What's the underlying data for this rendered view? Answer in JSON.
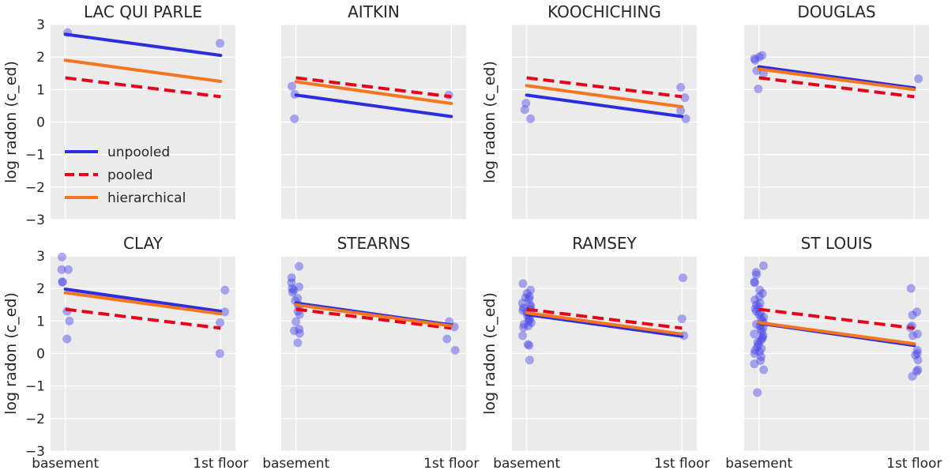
{
  "colors": {
    "background": "#ebebeb",
    "grid": "#ffffff",
    "unpooled": "#2d2de0",
    "pooled": "#e8001a",
    "hierarchical": "#f5761f",
    "points": "#4a46e6"
  },
  "chart_data": {
    "type": "scatter",
    "layout": {
      "rows": 2,
      "cols": 4,
      "sharey": true
    },
    "ylabel": "log radon  (c_ed)",
    "ylim": [
      -3,
      3
    ],
    "yticks": [
      -3,
      -2,
      -1,
      0,
      1,
      2,
      3
    ],
    "ytick_labels": [
      "−3",
      "−2",
      "−1",
      "0",
      "1",
      "2",
      "3"
    ],
    "x_categories": [
      "basement",
      "1st floor"
    ],
    "grid": true,
    "legend": {
      "placement": "lower-left of first panel",
      "entries": [
        {
          "key": "unpooled",
          "label": "unpooled",
          "style": "solid"
        },
        {
          "key": "pooled",
          "label": "pooled",
          "style": "dashed"
        },
        {
          "key": "hierarchical",
          "label": "hierarchical",
          "style": "solid"
        }
      ]
    },
    "panels": [
      {
        "title": "LAC QUI PARLE",
        "unpooled": [
          2.7,
          2.05
        ],
        "pooled": [
          1.36,
          0.78
        ],
        "hierarchical": [
          1.9,
          1.25
        ],
        "basement_points": [
          2.75
        ],
        "floor_points": [
          2.42
        ]
      },
      {
        "title": "AITKIN",
        "unpooled": [
          0.83,
          0.17
        ],
        "pooled": [
          1.36,
          0.78
        ],
        "hierarchical": [
          1.24,
          0.57
        ],
        "basement_points": [
          1.1,
          0.85,
          0.1
        ],
        "floor_points": [
          0.83
        ]
      },
      {
        "title": "KOOCHICHING",
        "unpooled": [
          0.83,
          0.17
        ],
        "pooled": [
          1.36,
          0.78
        ],
        "hierarchical": [
          1.12,
          0.47
        ],
        "basement_points": [
          0.58,
          0.38,
          0.1
        ],
        "floor_points": [
          1.07,
          0.75,
          0.35,
          0.1
        ]
      },
      {
        "title": "DOUGLAS",
        "unpooled": [
          1.7,
          1.05
        ],
        "pooled": [
          1.36,
          0.78
        ],
        "hierarchical": [
          1.63,
          1.0
        ],
        "basement_points": [
          2.05,
          2.0,
          1.95,
          1.9,
          1.58,
          1.5,
          1.02
        ],
        "floor_points": [
          1.33
        ]
      },
      {
        "title": "CLAY",
        "unpooled": [
          1.98,
          1.3
        ],
        "pooled": [
          1.36,
          0.78
        ],
        "hierarchical": [
          1.87,
          1.22
        ],
        "basement_points": [
          2.97,
          2.58,
          2.58,
          2.2,
          2.2,
          1.3,
          1.0,
          0.45
        ],
        "floor_points": [
          1.95,
          1.28,
          0.95,
          0.0
        ]
      },
      {
        "title": "STEARNS",
        "unpooled": [
          1.55,
          0.88
        ],
        "pooled": [
          1.36,
          0.78
        ],
        "hierarchical": [
          1.5,
          0.85
        ],
        "basement_points": [
          2.68,
          2.33,
          2.18,
          2.05,
          2.0,
          1.95,
          1.88,
          1.7,
          1.62,
          1.5,
          1.45,
          1.3,
          1.2,
          0.98,
          0.75,
          0.7,
          0.62,
          0.33
        ],
        "floor_points": [
          0.98,
          0.82,
          0.45,
          0.1
        ]
      },
      {
        "title": "RAMSEY",
        "unpooled": [
          1.2,
          0.53
        ],
        "pooled": [
          1.36,
          0.78
        ],
        "hierarchical": [
          1.25,
          0.6
        ],
        "basement_points": [
          2.15,
          1.95,
          1.85,
          1.75,
          1.72,
          1.68,
          1.55,
          1.5,
          1.45,
          1.4,
          1.35,
          1.32,
          1.28,
          1.22,
          1.18,
          1.1,
          1.05,
          1.0,
          0.95,
          0.9,
          0.85,
          0.8,
          0.55,
          0.28,
          0.25,
          -0.2
        ],
        "floor_points": [
          2.33,
          1.07,
          0.55
        ]
      },
      {
        "title": "ST LOUIS",
        "unpooled": [
          0.93,
          0.25
        ],
        "pooled": [
          1.36,
          0.78
        ],
        "hierarchical": [
          0.95,
          0.3
        ],
        "basement_points": [
          2.7,
          2.5,
          2.42,
          2.2,
          2.18,
          1.95,
          1.85,
          1.75,
          1.65,
          1.55,
          1.5,
          1.42,
          1.38,
          1.3,
          1.25,
          1.2,
          1.12,
          1.08,
          1.0,
          0.95,
          0.9,
          0.85,
          0.8,
          0.75,
          0.68,
          0.6,
          0.55,
          0.5,
          0.45,
          0.4,
          0.35,
          0.28,
          0.2,
          0.15,
          0.1,
          0.05,
          0.0,
          -0.1,
          -0.22,
          -0.32,
          -0.5,
          -1.2
        ],
        "floor_points": [
          2.0,
          1.28,
          1.18,
          0.85,
          0.8,
          0.6,
          0.55,
          0.1,
          0.0,
          -0.05,
          -0.2,
          -0.5,
          -0.55,
          -0.7
        ]
      }
    ]
  }
}
